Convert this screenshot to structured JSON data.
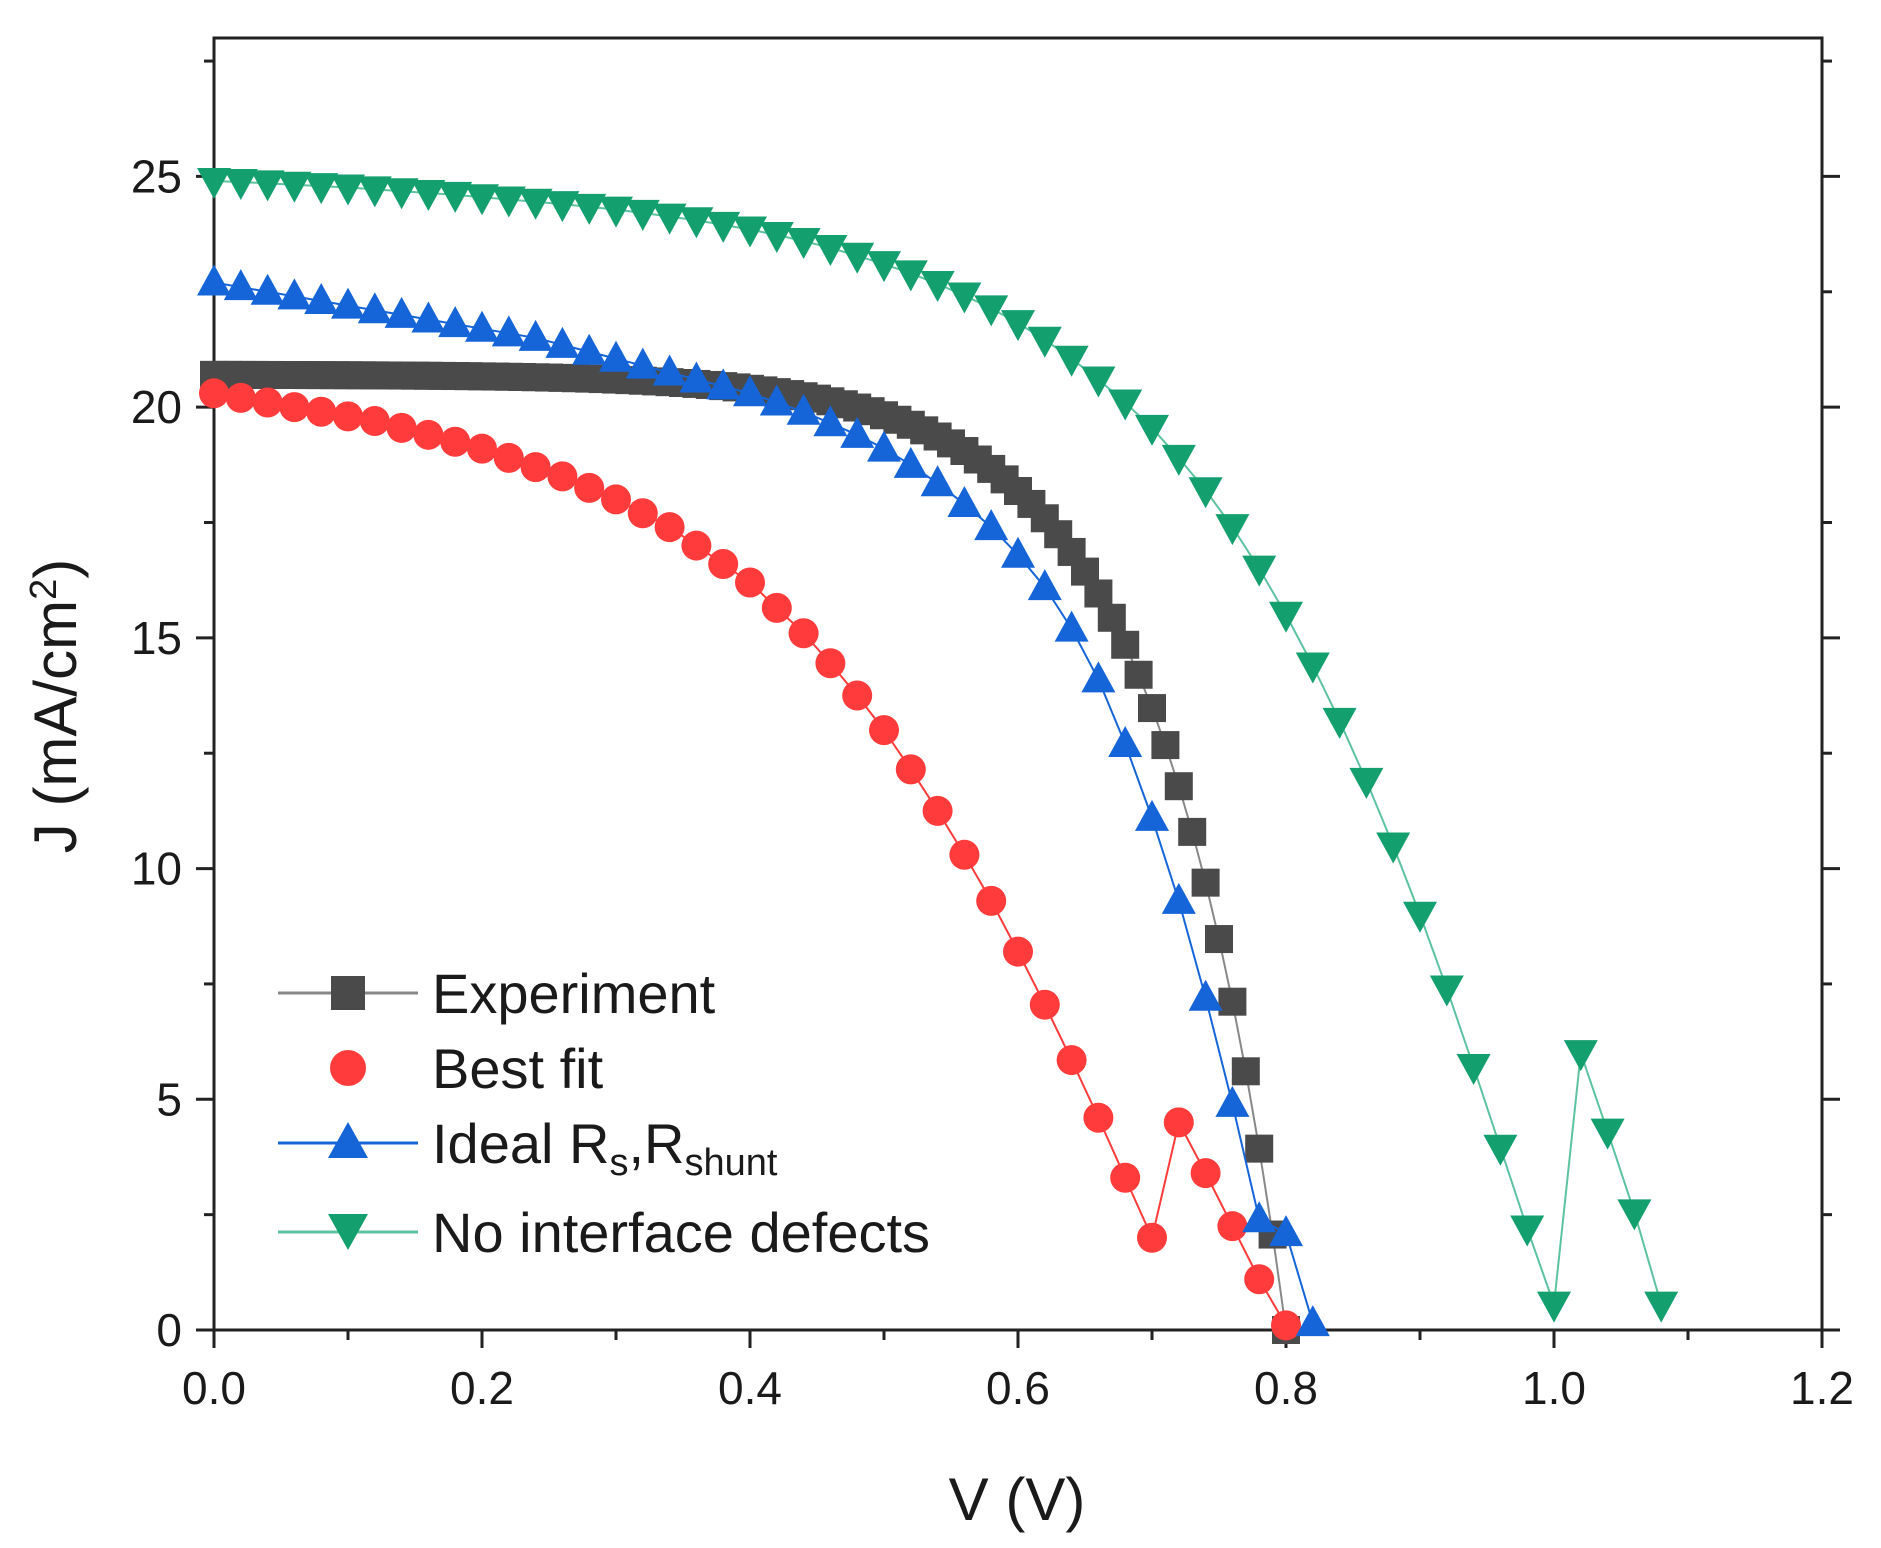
{
  "chart_data": {
    "type": "scatter",
    "xlabel": "V (V)",
    "ylabel": {
      "main": "J (mA/cm",
      "sup": "2",
      "close": ")"
    },
    "xlim": [
      0.0,
      1.2
    ],
    "ylim": [
      0,
      28
    ],
    "xticks": [
      "0.0",
      "0.2",
      "0.4",
      "0.6",
      "0.8",
      "1.0",
      "1.2"
    ],
    "yticks": [
      "0",
      "5",
      "10",
      "15",
      "20",
      "25"
    ],
    "grid": false,
    "legend_position": "bottom-left",
    "series": [
      {
        "name": "Experiment",
        "marker": "square",
        "color": "#4a4a4a",
        "line_color": "#888888",
        "model": {
          "jsc": 20.7,
          "voc": 0.8,
          "a": 0.095,
          "count": 81
        }
      },
      {
        "name": "Best fit",
        "marker": "circle",
        "color": "#ff3b3b",
        "line_color": "#ff3b3b",
        "x": [
          0.0,
          0.02,
          0.04,
          0.06,
          0.08,
          0.1,
          0.12,
          0.14,
          0.16,
          0.18,
          0.2,
          0.22,
          0.24,
          0.26,
          0.28,
          0.3,
          0.32,
          0.34,
          0.36,
          0.38,
          0.4,
          0.42,
          0.44,
          0.46,
          0.48,
          0.5,
          0.52,
          0.54,
          0.56,
          0.58,
          0.6,
          0.62,
          0.64,
          0.66,
          0.68,
          0.7,
          0.72,
          0.74,
          0.76,
          0.78,
          0.8
        ],
        "y": [
          20.3,
          20.2,
          20.1,
          20.0,
          19.9,
          19.8,
          19.7,
          19.55,
          19.4,
          19.25,
          19.1,
          18.9,
          18.7,
          18.5,
          18.25,
          18.0,
          17.7,
          17.4,
          17.0,
          16.6,
          16.2,
          15.65,
          15.1,
          14.45,
          13.75,
          13.0,
          12.15,
          11.25,
          10.3,
          9.3,
          8.2,
          7.05,
          5.85,
          4.6,
          3.3,
          2.0,
          4.5,
          3.4,
          2.25,
          1.1,
          0.1
        ]
      },
      {
        "name": "Ideal R",
        "name_sub1": "s",
        "name_mid": ",R",
        "name_sub2": "shunt",
        "marker": "triangle-up",
        "color": "#1565d8",
        "line_color": "#1565d8",
        "x": [
          0.0,
          0.02,
          0.04,
          0.06,
          0.08,
          0.1,
          0.12,
          0.14,
          0.16,
          0.18,
          0.2,
          0.22,
          0.24,
          0.26,
          0.28,
          0.3,
          0.32,
          0.34,
          0.36,
          0.38,
          0.4,
          0.42,
          0.44,
          0.46,
          0.48,
          0.5,
          0.52,
          0.54,
          0.56,
          0.58,
          0.6,
          0.62,
          0.64,
          0.66,
          0.68,
          0.7,
          0.72,
          0.74,
          0.76,
          0.78,
          0.8,
          0.82
        ],
        "y": [
          22.7,
          22.6,
          22.5,
          22.4,
          22.3,
          22.2,
          22.1,
          22.0,
          21.9,
          21.8,
          21.7,
          21.6,
          21.5,
          21.35,
          21.2,
          21.05,
          20.9,
          20.75,
          20.6,
          20.45,
          20.3,
          20.1,
          19.9,
          19.65,
          19.4,
          19.1,
          18.75,
          18.35,
          17.9,
          17.4,
          16.8,
          16.1,
          15.2,
          14.1,
          12.7,
          11.1,
          9.3,
          7.2,
          4.9,
          2.4,
          2.1,
          0.15
        ]
      },
      {
        "name": "No interface defects",
        "marker": "triangle-down",
        "color": "#14a06e",
        "line_color": "#5cc39e",
        "x": [
          0.0,
          0.02,
          0.04,
          0.06,
          0.08,
          0.1,
          0.12,
          0.14,
          0.16,
          0.18,
          0.2,
          0.22,
          0.24,
          0.26,
          0.28,
          0.3,
          0.32,
          0.34,
          0.36,
          0.38,
          0.4,
          0.42,
          0.44,
          0.46,
          0.48,
          0.5,
          0.52,
          0.54,
          0.56,
          0.58,
          0.6,
          0.62,
          0.64,
          0.66,
          0.68,
          0.7,
          0.72,
          0.74,
          0.76,
          0.78,
          0.8,
          0.82,
          0.84,
          0.86,
          0.88,
          0.9,
          0.92,
          0.94,
          0.96,
          0.98,
          1.0,
          1.02,
          1.04,
          1.06,
          1.08
        ],
        "y": [
          24.9,
          24.88,
          24.85,
          24.82,
          24.79,
          24.76,
          24.72,
          24.68,
          24.64,
          24.6,
          24.55,
          24.5,
          24.45,
          24.4,
          24.34,
          24.28,
          24.21,
          24.13,
          24.05,
          23.95,
          23.85,
          23.73,
          23.6,
          23.45,
          23.28,
          23.1,
          22.9,
          22.67,
          22.42,
          22.14,
          21.82,
          21.46,
          21.05,
          20.6,
          20.1,
          19.55,
          18.9,
          18.2,
          17.4,
          16.5,
          15.5,
          14.4,
          13.2,
          11.9,
          10.5,
          9.0,
          7.4,
          5.7,
          3.95,
          2.2,
          0.55,
          6.0,
          4.3,
          2.55,
          0.55
        ]
      }
    ],
    "legend": [
      {
        "label": "Experiment"
      },
      {
        "label": "Best fit"
      },
      {
        "label": "Ideal R",
        "sub1": "s",
        "mid": ",R",
        "sub2": "shunt"
      },
      {
        "label": "No interface defects"
      }
    ]
  }
}
